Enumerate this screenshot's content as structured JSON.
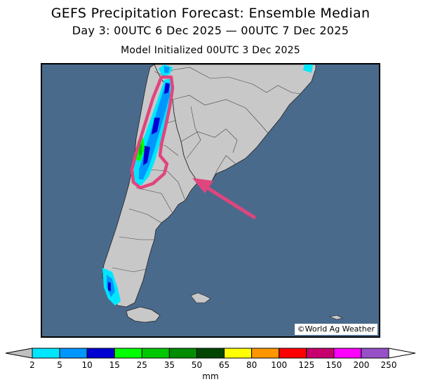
{
  "header": {
    "title": "GEFS Precipitation Forecast: Ensemble Median",
    "subtitle": "Day 3: 00UTC 6 Dec 2025 — 00UTC 7 Dec 2025",
    "init": "Model Initialized 00UTC 3 Dec 2025"
  },
  "map": {
    "credit": "©World Ag Weather",
    "ocean_color": "#4a6a8c",
    "land_color": "#c8c8c8",
    "highlight_color": "#e0457e"
  },
  "legend": {
    "unit": "mm",
    "ticks": [
      "2",
      "5",
      "10",
      "15",
      "25",
      "35",
      "50",
      "65",
      "80",
      "100",
      "125",
      "150",
      "200",
      "250"
    ],
    "colors": [
      "#00e6ff",
      "#0096ff",
      "#0000d2",
      "#00ff00",
      "#00c800",
      "#008c00",
      "#004600",
      "#ffff00",
      "#ff9600",
      "#ff0000",
      "#c8006e",
      "#ff00ff",
      "#9650c8"
    ]
  }
}
